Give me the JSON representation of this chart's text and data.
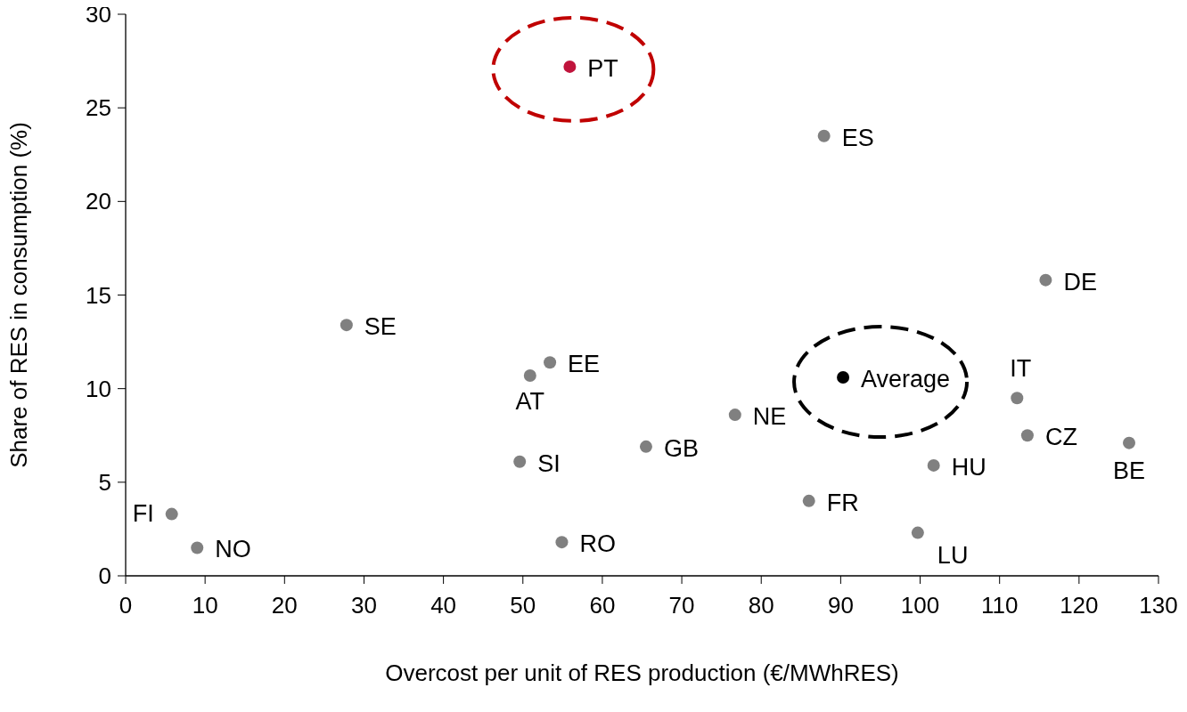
{
  "chart_data": {
    "type": "scatter",
    "xlabel": "Overcost per unit of RES production (€/MWhRES)",
    "ylabel": "Share of RES in consumption (%)",
    "xlim": [
      0,
      130
    ],
    "xticks": [
      0,
      10,
      20,
      30,
      40,
      50,
      60,
      70,
      80,
      90,
      100,
      110,
      120,
      130
    ],
    "ylim": [
      0,
      30
    ],
    "yticks": [
      0,
      5,
      10,
      15,
      20,
      25,
      30
    ],
    "grid": false,
    "marker": "circle",
    "series": [
      {
        "color": "#808080",
        "x": [
          87.9,
          115.8,
          27.8,
          53.4,
          50.9,
          112.2,
          76.7,
          113.5,
          126.3,
          65.5,
          49.6,
          101.7,
          86.0,
          99.7,
          54.9,
          5.8,
          9.0
        ],
        "values": [
          23.5,
          15.8,
          13.4,
          11.4,
          10.7,
          9.5,
          8.6,
          7.5,
          7.1,
          6.9,
          6.1,
          5.9,
          4.0,
          2.3,
          1.8,
          3.3,
          1.5
        ]
      },
      {
        "color": "#000000",
        "x": [
          90.3
        ],
        "values": [
          10.6
        ]
      },
      {
        "color": "#c0143c",
        "x": [
          55.9
        ],
        "values": [
          27.2
        ]
      }
    ],
    "annotations": [
      {
        "text": "ES",
        "x": 87.9,
        "y": 23.5
      },
      {
        "text": "DE",
        "x": 115.8,
        "y": 15.8
      },
      {
        "text": "SE",
        "x": 27.8,
        "y": 13.4
      },
      {
        "text": "EE",
        "x": 53.4,
        "y": 11.4
      },
      {
        "text": "AT",
        "x": 50.9,
        "y": 10.7
      },
      {
        "text": "IT",
        "x": 112.2,
        "y": 9.5
      },
      {
        "text": "NE",
        "x": 76.7,
        "y": 8.6
      },
      {
        "text": "CZ",
        "x": 113.5,
        "y": 7.5
      },
      {
        "text": "BE",
        "x": 126.3,
        "y": 7.1
      },
      {
        "text": "GB",
        "x": 65.5,
        "y": 6.9
      },
      {
        "text": "SI",
        "x": 49.6,
        "y": 6.1
      },
      {
        "text": "HU",
        "x": 101.7,
        "y": 5.9
      },
      {
        "text": "FR",
        "x": 86.0,
        "y": 4.0
      },
      {
        "text": "LU",
        "x": 99.7,
        "y": 2.3
      },
      {
        "text": "RO",
        "x": 54.9,
        "y": 1.8
      },
      {
        "text": "FI",
        "x": 5.8,
        "y": 3.3
      },
      {
        "text": "NO",
        "x": 9.0,
        "y": 1.5
      },
      {
        "text": "Average",
        "x": 90.3,
        "y": 10.6
      },
      {
        "text": "PT",
        "x": 55.9,
        "y": 27.2
      }
    ]
  }
}
